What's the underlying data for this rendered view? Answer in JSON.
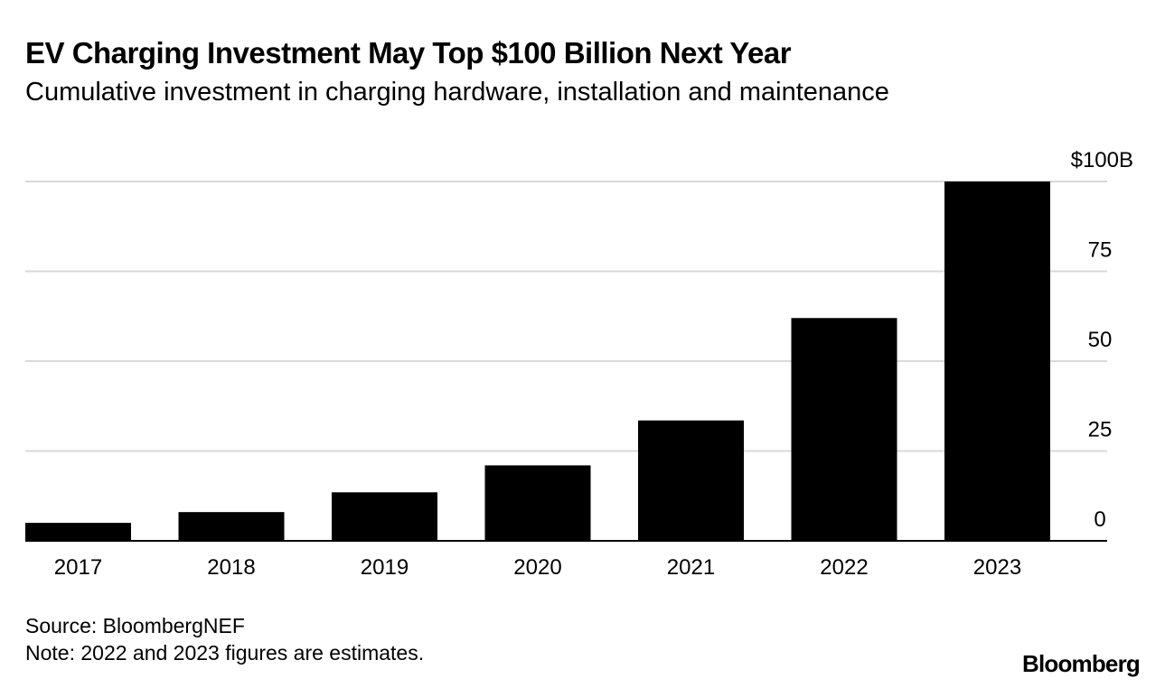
{
  "header": {
    "title": "EV Charging Investment May Top $100 Billion Next Year",
    "subtitle": "Cumulative investment in charging hardware, installation and maintenance"
  },
  "footer": {
    "source": "Source: BloombergNEF",
    "note": "Note: 2022 and 2023 figures are estimates.",
    "logo": "Bloomberg"
  },
  "colors": {
    "bar": "#000000",
    "grid": "#d9d9d9",
    "baseline": "#000000",
    "text": "#000000"
  },
  "chart_data": {
    "type": "bar",
    "categories": [
      "2017",
      "2018",
      "2019",
      "2020",
      "2021",
      "2022",
      "2023"
    ],
    "values": [
      5,
      8,
      13.5,
      21,
      33.5,
      62,
      100
    ],
    "ylim": [
      0,
      100
    ],
    "yticks": [
      0,
      25,
      50,
      75,
      100
    ],
    "ytick_labels": [
      "0",
      "25",
      "50",
      "75",
      "$100B"
    ],
    "y_axis_position": "right",
    "grid": true,
    "legend": "none"
  }
}
